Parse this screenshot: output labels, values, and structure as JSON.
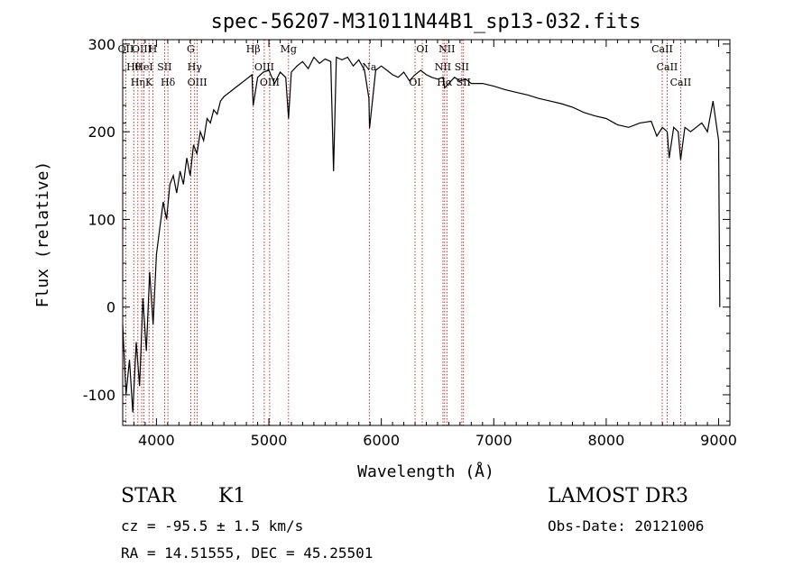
{
  "chart_data": {
    "type": "line",
    "title": "spec-56207-M31011N44B1_sp13-032.fits",
    "xlabel": "Wavelength (Å)",
    "ylabel": "Flux (relative)",
    "xlim": [
      3700,
      9100
    ],
    "ylim": [
      -135,
      305
    ],
    "x_ticks": [
      4000,
      5000,
      6000,
      7000,
      8000,
      9000
    ],
    "y_ticks": [
      -100,
      0,
      100,
      200,
      300
    ],
    "series": [
      {
        "name": "flux",
        "color": "#000000",
        "x": [
          3700,
          3730,
          3760,
          3790,
          3820,
          3850,
          3880,
          3910,
          3940,
          3970,
          4000,
          4030,
          4060,
          4090,
          4120,
          4150,
          4180,
          4210,
          4240,
          4270,
          4300,
          4330,
          4360,
          4390,
          4420,
          4450,
          4480,
          4510,
          4540,
          4570,
          4600,
          4650,
          4700,
          4750,
          4800,
          4850,
          4860,
          4900,
          4950,
          5000,
          5050,
          5100,
          5150,
          5175,
          5200,
          5250,
          5300,
          5350,
          5400,
          5450,
          5500,
          5550,
          5575,
          5600,
          5650,
          5700,
          5750,
          5800,
          5850,
          5890,
          5895,
          5950,
          6000,
          6050,
          6100,
          6150,
          6200,
          6250,
          6300,
          6350,
          6400,
          6450,
          6500,
          6550,
          6563,
          6600,
          6650,
          6700,
          6750,
          6800,
          6900,
          7000,
          7100,
          7200,
          7300,
          7400,
          7500,
          7600,
          7700,
          7800,
          7900,
          8000,
          8100,
          8200,
          8300,
          8400,
          8450,
          8500,
          8542,
          8560,
          8600,
          8640,
          8662,
          8700,
          8750,
          8800,
          8850,
          8900,
          8950,
          9000,
          9010
        ],
        "y": [
          -20,
          -100,
          -60,
          -120,
          -40,
          -90,
          10,
          -50,
          40,
          -20,
          60,
          90,
          120,
          100,
          140,
          150,
          130,
          155,
          140,
          170,
          150,
          185,
          175,
          200,
          190,
          215,
          210,
          225,
          220,
          235,
          240,
          245,
          250,
          255,
          260,
          265,
          230,
          262,
          268,
          270,
          255,
          268,
          262,
          215,
          268,
          275,
          280,
          272,
          285,
          278,
          283,
          280,
          155,
          285,
          282,
          285,
          275,
          282,
          270,
          238,
          204,
          270,
          275,
          270,
          265,
          262,
          268,
          258,
          265,
          270,
          265,
          262,
          260,
          262,
          250,
          255,
          262,
          258,
          260,
          255,
          255,
          252,
          248,
          245,
          242,
          238,
          235,
          232,
          228,
          222,
          218,
          215,
          208,
          205,
          210,
          212,
          195,
          205,
          200,
          170,
          205,
          200,
          168,
          205,
          200,
          205,
          210,
          200,
          235,
          190,
          0
        ],
        "width": 1.2
      }
    ],
    "lines": [
      {
        "wavelength": 3727,
        "label": "OII"
      },
      {
        "wavelength": 3798,
        "label": "Hθ"
      },
      {
        "wavelength": 3835,
        "label": "Hη"
      },
      {
        "wavelength": 3869,
        "label": "OIII"
      },
      {
        "wavelength": 3889,
        "label": "HeI"
      },
      {
        "wavelength": 3934,
        "label": "K"
      },
      {
        "wavelength": 3968,
        "label": "H"
      },
      {
        "wavelength": 4072,
        "label": "SII"
      },
      {
        "wavelength": 4102,
        "label": "Hδ"
      },
      {
        "wavelength": 4305,
        "label": "G"
      },
      {
        "wavelength": 4340,
        "label": "Hγ"
      },
      {
        "wavelength": 4363,
        "label": "OIII"
      },
      {
        "wavelength": 4861,
        "label": "Hβ"
      },
      {
        "wavelength": 4959,
        "label": "OIII"
      },
      {
        "wavelength": 5007,
        "label": "OIII"
      },
      {
        "wavelength": 5175,
        "label": "Mg"
      },
      {
        "wavelength": 5893,
        "label": "Na"
      },
      {
        "wavelength": 6300,
        "label": "OI"
      },
      {
        "wavelength": 6364,
        "label": "OI"
      },
      {
        "wavelength": 6548,
        "label": "NII"
      },
      {
        "wavelength": 6563,
        "label": "Hα"
      },
      {
        "wavelength": 6583,
        "label": "NII"
      },
      {
        "wavelength": 6716,
        "label": "SII"
      },
      {
        "wavelength": 6731,
        "label": "SII"
      },
      {
        "wavelength": 8498,
        "label": "CaII"
      },
      {
        "wavelength": 8542,
        "label": "CaII"
      },
      {
        "wavelength": 8662,
        "label": "CaII"
      }
    ],
    "line_color": "#b30000",
    "grid": false
  },
  "info": {
    "class": "STAR",
    "subclass": "K1",
    "survey": "LAMOST DR3",
    "cz": "cz = -95.5 ± 1.5 km/s",
    "obs_date": "Obs-Date: 20121006",
    "coords": "RA =  14.51555, DEC =  45.25501"
  }
}
